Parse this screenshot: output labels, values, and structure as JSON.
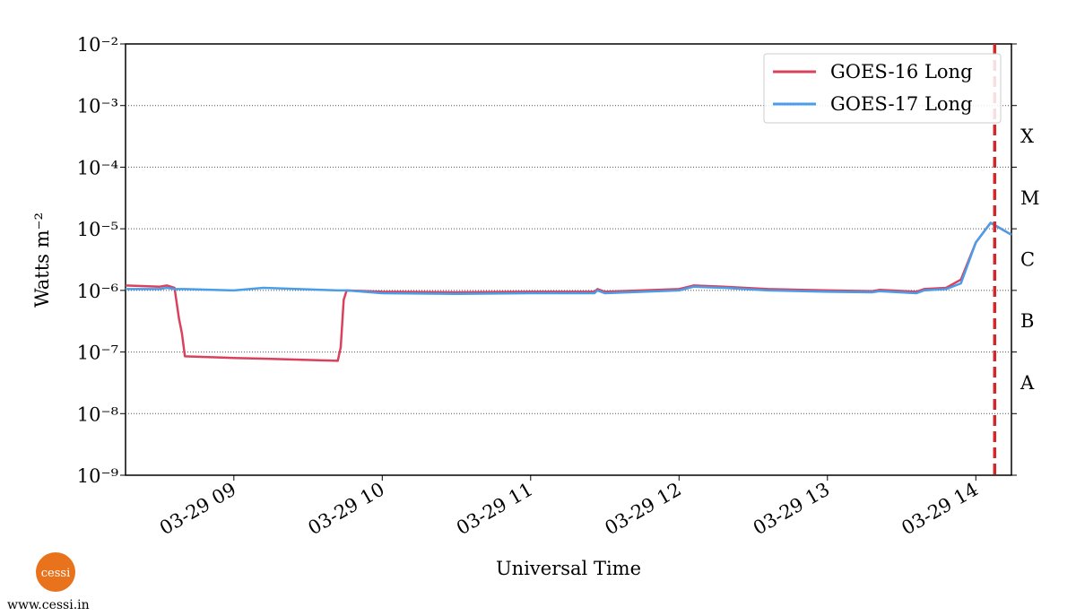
{
  "chart_data": {
    "type": "line",
    "xlabel": "Universal Time",
    "ylabel": "Watts m⁻²",
    "x": [
      8.27,
      8.5,
      8.55,
      8.6,
      8.63,
      8.65,
      8.67,
      9.0,
      9.2,
      9.7,
      9.72,
      9.74,
      9.76,
      10.0,
      10.5,
      11.0,
      11.43,
      11.45,
      11.5,
      12.0,
      12.1,
      12.3,
      12.6,
      13.0,
      13.3,
      13.35,
      13.6,
      13.65,
      13.8,
      13.9,
      14.0,
      14.1,
      14.24
    ],
    "series": [
      {
        "name": "GOES-16 Long",
        "color": "#d9415c",
        "values": [
          1.2e-06,
          1.15e-06,
          1.2e-06,
          1.1e-06,
          3.5e-07,
          2e-07,
          8.5e-08,
          8e-08,
          7.8e-08,
          7.2e-08,
          1.2e-07,
          7e-07,
          1e-06,
          9.5e-07,
          9.3e-07,
          9.5e-07,
          9.5e-07,
          1.05e-06,
          9.5e-07,
          1.05e-06,
          1.2e-06,
          1.15e-06,
          1.05e-06,
          1e-06,
          9.7e-07,
          1.02e-06,
          9.5e-07,
          1.05e-06,
          1.1e-06,
          1.5e-06,
          6e-06,
          1.25e-05,
          8e-06
        ]
      },
      {
        "name": "GOES-17 Long",
        "color": "#4a9de8",
        "values": [
          1.05e-06,
          1.05e-06,
          1.1e-06,
          1.05e-06,
          1.05e-06,
          1.05e-06,
          1.05e-06,
          1e-06,
          1.1e-06,
          1e-06,
          1e-06,
          1e-06,
          1e-06,
          9e-07,
          8.8e-07,
          9e-07,
          9e-07,
          1e-06,
          9e-07,
          1e-06,
          1.15e-06,
          1.1e-06,
          1e-06,
          9.5e-07,
          9.3e-07,
          9.7e-07,
          9e-07,
          1e-06,
          1.05e-06,
          1.3e-06,
          6e-06,
          1.25e-05,
          8e-06
        ]
      }
    ],
    "xlim": [
      8.27,
      14.24
    ],
    "xticks": [
      {
        "value": 9,
        "label": "03-29 09"
      },
      {
        "value": 10,
        "label": "03-29 10"
      },
      {
        "value": 11,
        "label": "03-29 11"
      },
      {
        "value": 12,
        "label": "03-29 12"
      },
      {
        "value": 13,
        "label": "03-29 13"
      },
      {
        "value": 14,
        "label": "03-29 14"
      }
    ],
    "ylim": [
      1e-09,
      0.01
    ],
    "log_y": true,
    "yticks": [
      {
        "value": 1e-09,
        "label": "10⁻⁹"
      },
      {
        "value": 1e-08,
        "label": "10⁻⁸"
      },
      {
        "value": 1e-07,
        "label": "10⁻⁷"
      },
      {
        "value": 1e-06,
        "label": "10⁻⁶"
      },
      {
        "value": 1e-05,
        "label": "10⁻⁵"
      },
      {
        "value": 0.0001,
        "label": "10⁻⁴"
      },
      {
        "value": 0.001,
        "label": "10⁻³"
      },
      {
        "value": 0.01,
        "label": "10⁻²"
      }
    ],
    "y2lim": [
      1e-09,
      0.01
    ],
    "y2ticks": [
      {
        "value": 3.16e-08,
        "label": "A"
      },
      {
        "value": 3.16e-07,
        "label": "B"
      },
      {
        "value": 3.16e-06,
        "label": "C"
      },
      {
        "value": 3.16e-05,
        "label": "M"
      },
      {
        "value": 0.000316,
        "label": "X"
      }
    ],
    "vline": {
      "x": 14.127,
      "color": "#d62728"
    },
    "grid": true,
    "legend": "upper right"
  },
  "footer": {
    "logo": "cessi",
    "url": "www.cessi.in"
  }
}
